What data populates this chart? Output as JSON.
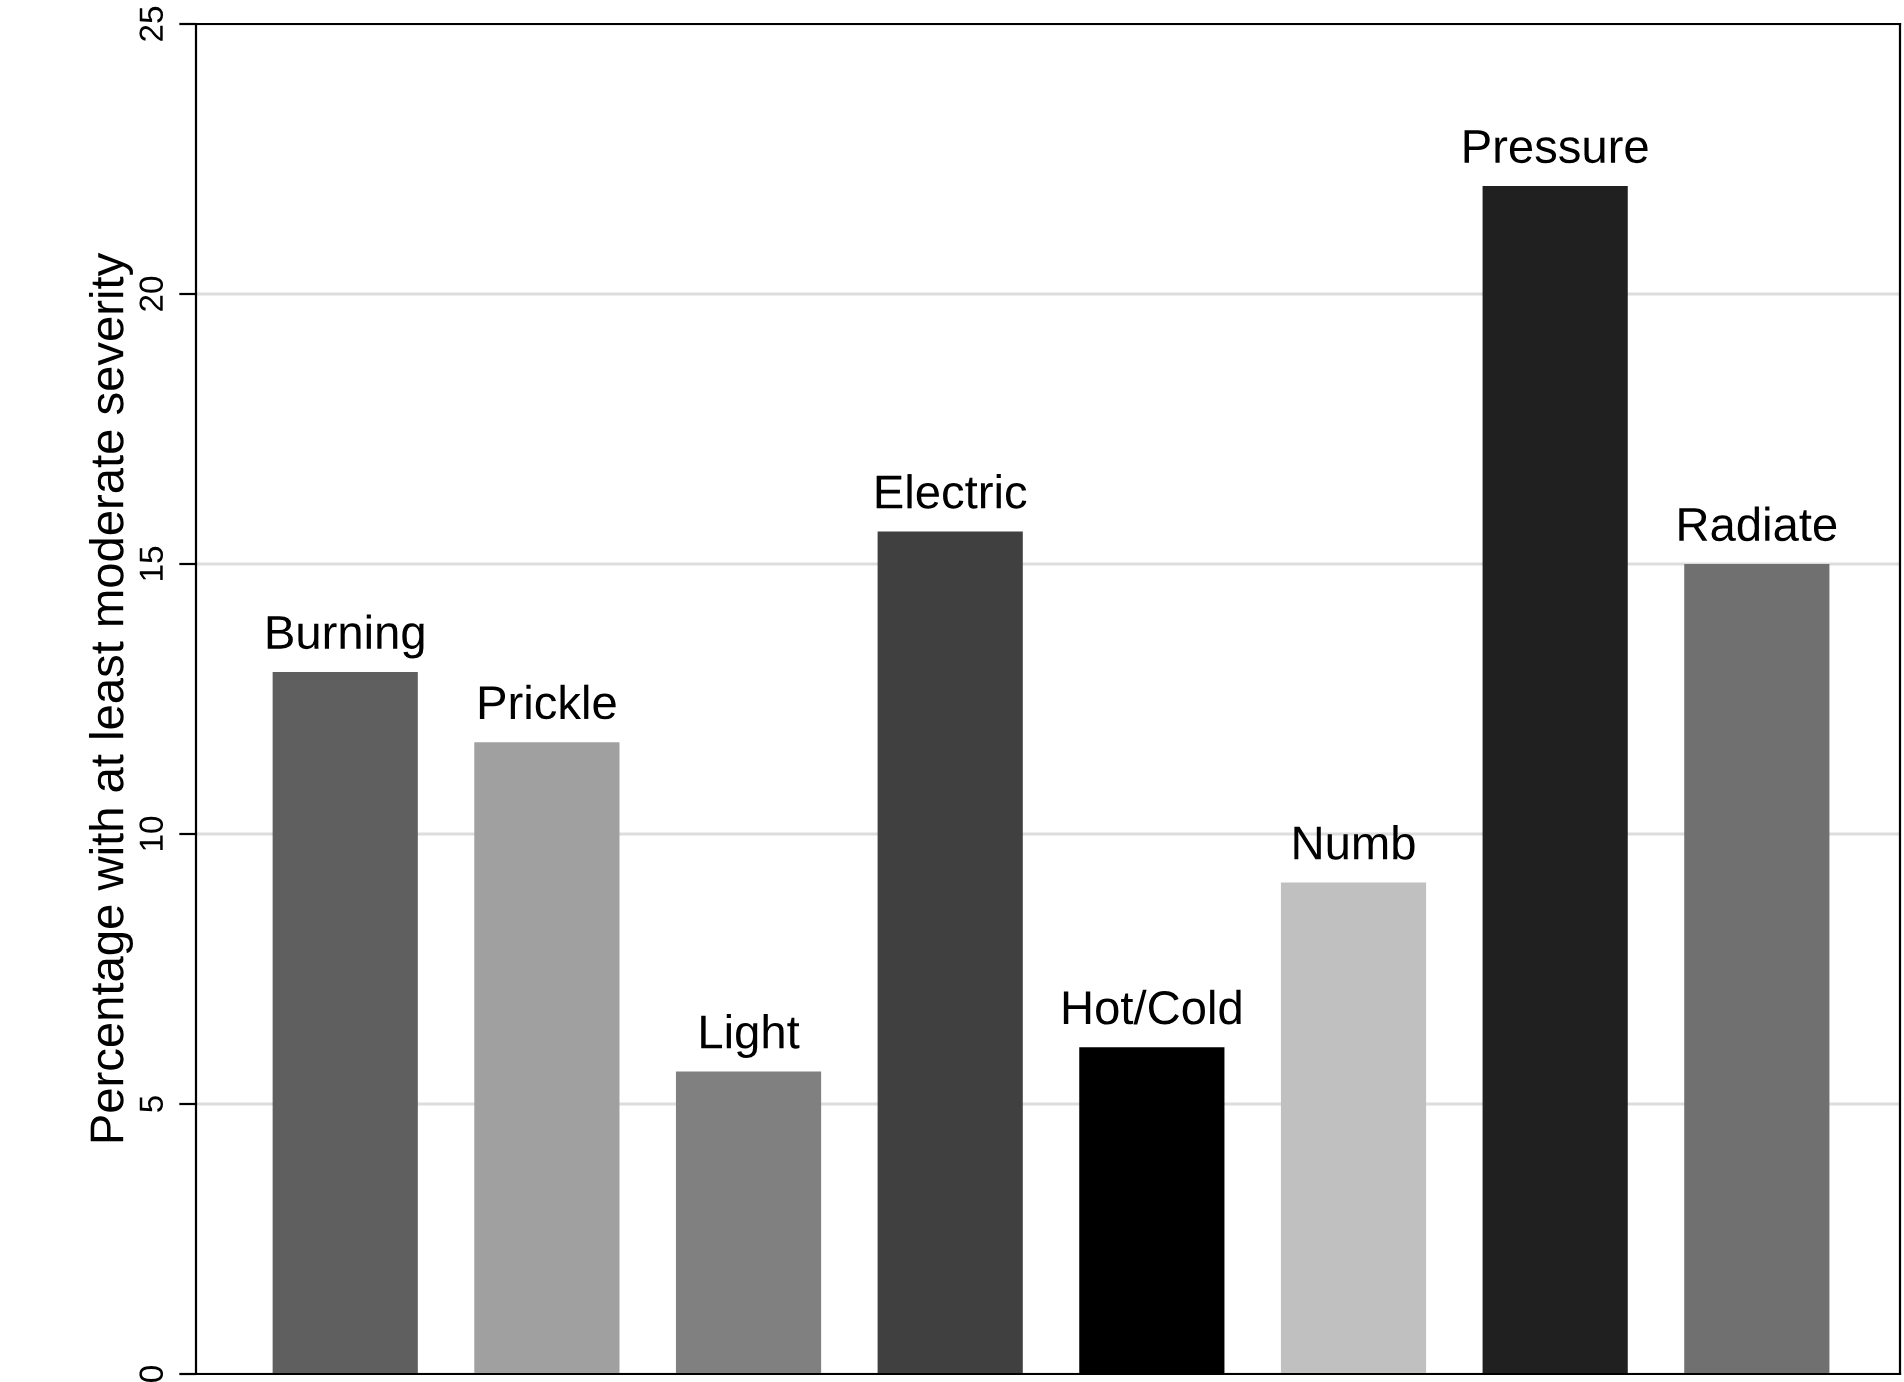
{
  "chart_data": {
    "type": "bar",
    "ylabel": "Percentage with at least moderate severity",
    "categories": [
      "Burning",
      "Prickle",
      "Light",
      "Electric",
      "Hot/Cold",
      "Numb",
      "Pressure",
      "Radiate"
    ],
    "values": [
      13.0,
      11.7,
      5.6,
      15.6,
      6.05,
      9.1,
      22.0,
      15.0
    ],
    "colors": [
      "#5f5f5f",
      "#a0a0a0",
      "#808080",
      "#404040",
      "#000000",
      "#c0c0c0",
      "#202020",
      "#707070"
    ],
    "ylim": [
      0,
      25
    ],
    "yticks": [
      0,
      5,
      10,
      15,
      20,
      25
    ],
    "grid": "y",
    "tick_labels": "y"
  }
}
